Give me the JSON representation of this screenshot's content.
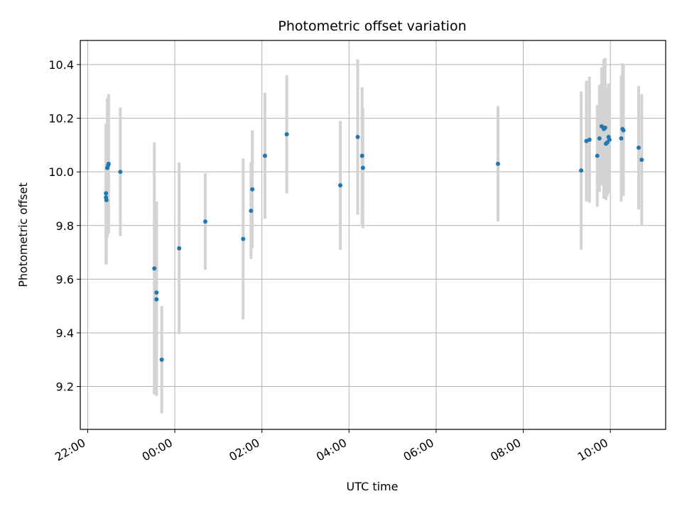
{
  "chart_data": {
    "type": "scatter",
    "title": "Photometric offset variation",
    "xlabel": "UTC time",
    "ylabel": "Photometric offset",
    "x_unit": "hours",
    "x_ticks": [
      {
        "value": -2,
        "label": "22:00"
      },
      {
        "value": 0,
        "label": "00:00"
      },
      {
        "value": 2,
        "label": "02:00"
      },
      {
        "value": 4,
        "label": "04:00"
      },
      {
        "value": 6,
        "label": "06:00"
      },
      {
        "value": 8,
        "label": "08:00"
      },
      {
        "value": 10,
        "label": "10:00"
      }
    ],
    "y_ticks": [
      9.2,
      9.4,
      9.6,
      9.8,
      10.0,
      10.2,
      10.4
    ],
    "xlim": [
      -2.17,
      11.27
    ],
    "ylim": [
      9.04,
      10.49
    ],
    "grid": true,
    "colors": {
      "point": "#1f77b4",
      "errorbar": "#d3d3d3",
      "grid": "#b0b0b0"
    },
    "series": [
      {
        "points": [
          {
            "x": -1.58,
            "y": 9.92,
            "err": 0.26
          },
          {
            "x": -1.58,
            "y": 9.905,
            "err": 0.25
          },
          {
            "x": -1.57,
            "y": 9.895,
            "err": 0.24
          },
          {
            "x": -1.55,
            "y": 10.015,
            "err": 0.26
          },
          {
            "x": -1.53,
            "y": 10.025,
            "err": 0.25
          },
          {
            "x": -1.52,
            "y": 10.03,
            "err": 0.26
          },
          {
            "x": -1.25,
            "y": 10.0,
            "err": 0.24
          },
          {
            "x": -0.47,
            "y": 9.64,
            "err": 0.47
          },
          {
            "x": -0.42,
            "y": 9.55,
            "err": 0.34
          },
          {
            "x": -0.42,
            "y": 9.525,
            "err": 0.36
          },
          {
            "x": -0.3,
            "y": 9.3,
            "err": 0.2
          },
          {
            "x": 0.1,
            "y": 9.715,
            "err": 0.32
          },
          {
            "x": 0.7,
            "y": 9.815,
            "err": 0.18
          },
          {
            "x": 1.57,
            "y": 9.75,
            "err": 0.3
          },
          {
            "x": 1.75,
            "y": 9.855,
            "err": 0.18
          },
          {
            "x": 1.78,
            "y": 9.935,
            "err": 0.22
          },
          {
            "x": 2.07,
            "y": 10.06,
            "err": 0.235
          },
          {
            "x": 2.57,
            "y": 10.14,
            "err": 0.22
          },
          {
            "x": 3.8,
            "y": 9.95,
            "err": 0.24
          },
          {
            "x": 4.2,
            "y": 10.13,
            "err": 0.29
          },
          {
            "x": 4.3,
            "y": 10.06,
            "err": 0.255
          },
          {
            "x": 4.32,
            "y": 10.015,
            "err": 0.225
          },
          {
            "x": 7.42,
            "y": 10.03,
            "err": 0.215
          },
          {
            "x": 9.33,
            "y": 10.005,
            "err": 0.295
          },
          {
            "x": 9.45,
            "y": 10.115,
            "err": 0.225
          },
          {
            "x": 9.52,
            "y": 10.12,
            "err": 0.235
          },
          {
            "x": 9.7,
            "y": 10.06,
            "err": 0.19
          },
          {
            "x": 9.75,
            "y": 10.125,
            "err": 0.2
          },
          {
            "x": 9.8,
            "y": 10.17,
            "err": 0.22
          },
          {
            "x": 9.85,
            "y": 10.16,
            "err": 0.26
          },
          {
            "x": 9.88,
            "y": 10.165,
            "err": 0.26
          },
          {
            "x": 9.9,
            "y": 10.105,
            "err": 0.21
          },
          {
            "x": 9.93,
            "y": 10.11,
            "err": 0.2
          },
          {
            "x": 9.96,
            "y": 10.13,
            "err": 0.2
          },
          {
            "x": 9.98,
            "y": 10.12,
            "err": 0.2
          },
          {
            "x": 10.25,
            "y": 10.125,
            "err": 0.235
          },
          {
            "x": 10.28,
            "y": 10.16,
            "err": 0.245
          },
          {
            "x": 10.3,
            "y": 10.155,
            "err": 0.245
          },
          {
            "x": 10.65,
            "y": 10.09,
            "err": 0.23
          },
          {
            "x": 10.72,
            "y": 10.045,
            "err": 0.245
          }
        ]
      }
    ]
  }
}
